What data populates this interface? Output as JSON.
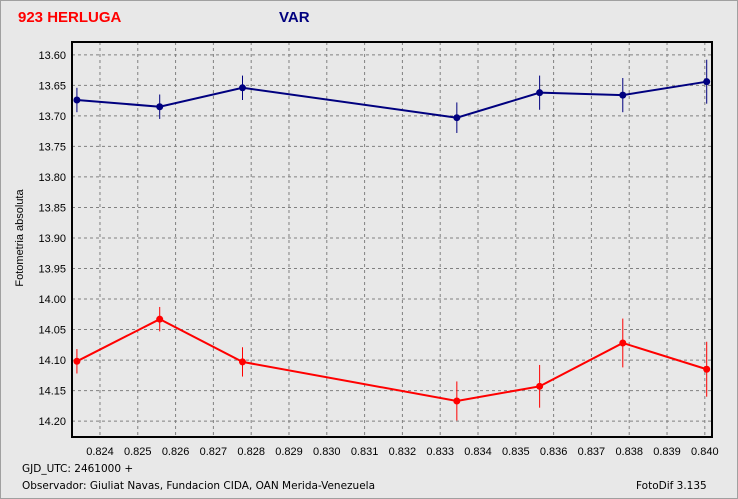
{
  "header": {
    "star_title": "923 HERLUGA",
    "series_title": "VAR"
  },
  "footer": {
    "gjd": "GJD_UTC: 2461000 +",
    "observer": "Observador: Giuliat Navas, Fundacion CIDA, OAN  Merida-Venezuela",
    "software": "FotoDif 3.135"
  },
  "chart_data": {
    "type": "line",
    "title": "923 HERLUGA  VAR",
    "xlabel": "GJD_UTC: 2461000 +",
    "ylabel": "Fotometria absoluta",
    "xlim": [
      0.82326,
      0.84019
    ],
    "ylim": [
      13.579,
      14.226
    ],
    "y_inverted": true,
    "grid": true,
    "xticks": [
      "0.824",
      "0.825",
      "0.826",
      "0.827",
      "0.828",
      "0.829",
      "0.830",
      "0.831",
      "0.832",
      "0.833",
      "0.834",
      "0.835",
      "0.836",
      "0.837",
      "0.838",
      "0.839",
      "0.840"
    ],
    "yticks": [
      "13.60",
      "13.65",
      "13.70",
      "13.75",
      "13.80",
      "13.85",
      "13.90",
      "13.95",
      "14.00",
      "14.05",
      "14.10",
      "14.15",
      "14.20"
    ],
    "x": [
      0.82339,
      0.82558,
      0.82777,
      0.83344,
      0.83563,
      0.83783,
      0.84005
    ],
    "series": [
      {
        "name": "VAR",
        "color": "#00007f",
        "values": [
          13.674,
          13.685,
          13.654,
          13.703,
          13.662,
          13.666,
          13.644
        ],
        "errors": [
          0.02,
          0.02,
          0.02,
          0.025,
          0.028,
          0.028,
          0.036
        ]
      },
      {
        "name": "923 HERLUGA",
        "color": "#ff0000",
        "values": [
          14.102,
          14.033,
          14.103,
          14.167,
          14.143,
          14.072,
          14.115
        ],
        "errors": [
          0.02,
          0.02,
          0.024,
          0.032,
          0.035,
          0.04,
          0.045
        ]
      }
    ]
  }
}
